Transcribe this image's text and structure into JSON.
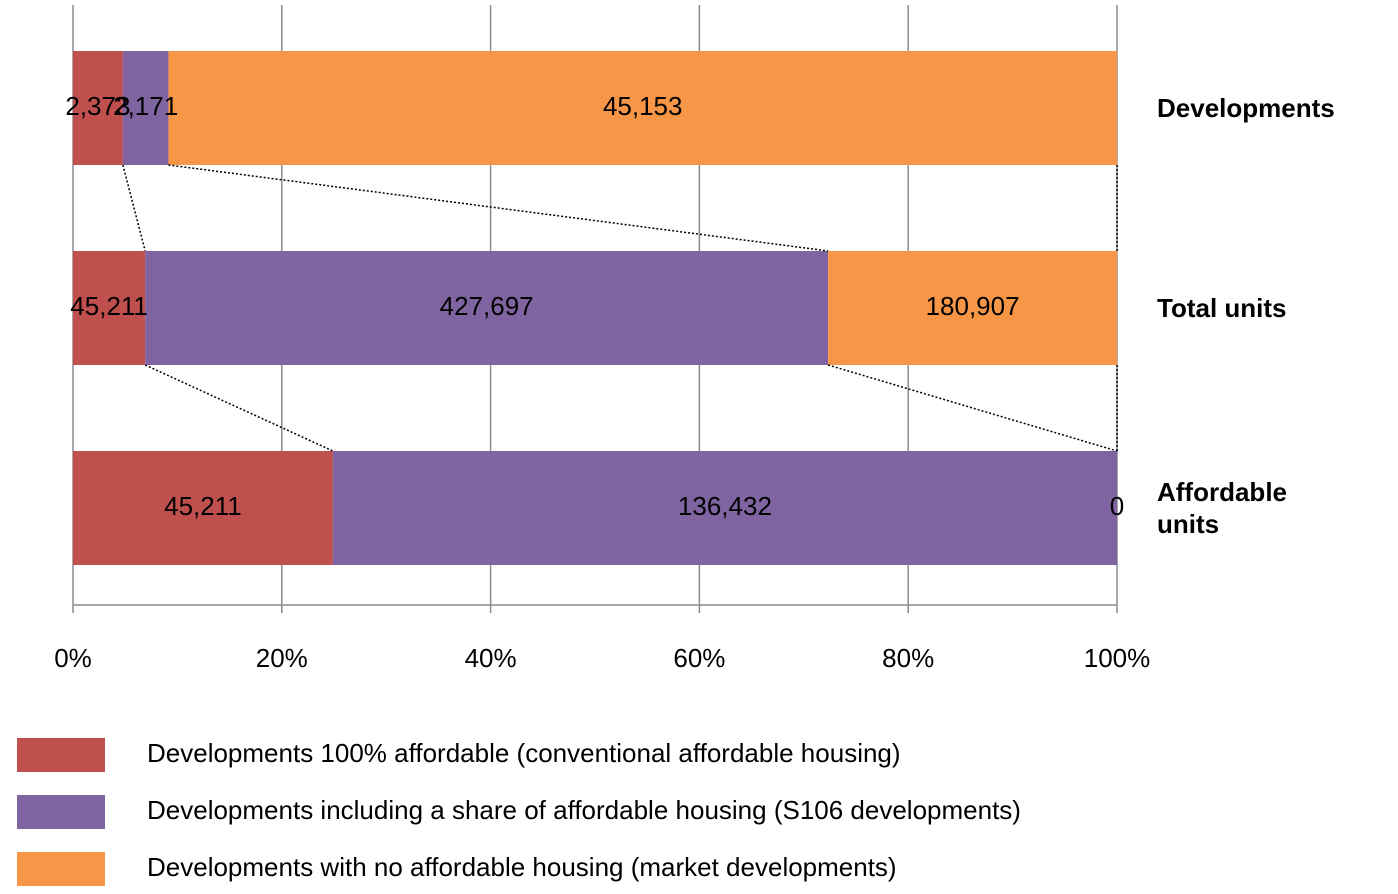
{
  "chart_data": {
    "type": "stacked_bar_100_horizontal",
    "categories": [
      "Developments",
      "Total units",
      "Affordable units"
    ],
    "series": [
      {
        "name": "Developments 100% affordable (conventional affordable housing)",
        "color": "#c0504d",
        "values": [
          2373,
          45211,
          45211
        ],
        "value_labels": [
          "2,373",
          "45,211",
          "45,211"
        ]
      },
      {
        "name": "Developments including a share of affordable housing (S106 developments)",
        "color": "#8064a2",
        "values": [
          2171,
          427697,
          136432
        ],
        "value_labels": [
          "2,171",
          "427,697",
          "136,432"
        ]
      },
      {
        "name": "Developments with no affordable housing (market developments)",
        "color": "#f79646",
        "values": [
          45153,
          180907,
          0
        ],
        "value_labels": [
          "45,153",
          "180,907",
          "0"
        ]
      }
    ],
    "xlim": [
      0,
      100
    ],
    "xticks": [
      {
        "value": 0,
        "label": "0%"
      },
      {
        "value": 20,
        "label": "20%"
      },
      {
        "value": 40,
        "label": "40%"
      },
      {
        "value": 60,
        "label": "60%"
      },
      {
        "value": 80,
        "label": "80%"
      },
      {
        "value": 100,
        "label": "100%"
      }
    ],
    "grid": true,
    "legend": "bottom"
  }
}
